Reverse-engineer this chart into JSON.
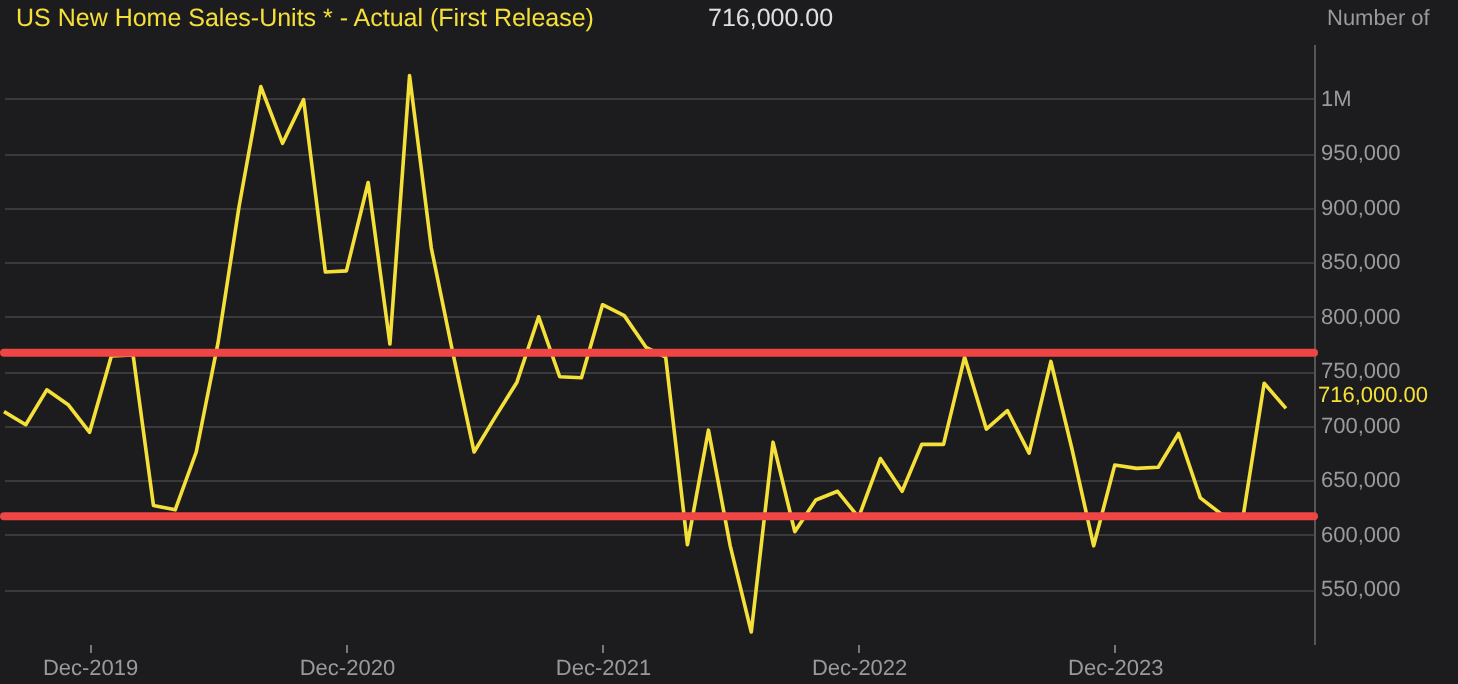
{
  "chart_data": {
    "type": "line",
    "title": "US New Home Sales-Units * - Actual (First Release)",
    "ylabel": "Number of",
    "x": [
      "2019-08",
      "2019-09",
      "2019-10",
      "2019-11",
      "2019-12",
      "2020-01",
      "2020-02",
      "2020-03",
      "2020-04",
      "2020-05",
      "2020-06",
      "2020-07",
      "2020-08",
      "2020-09",
      "2020-10",
      "2020-11",
      "2020-12",
      "2021-01",
      "2021-02",
      "2021-03",
      "2021-04",
      "2021-05",
      "2021-06",
      "2021-07",
      "2021-08",
      "2021-09",
      "2021-10",
      "2021-11",
      "2021-12",
      "2022-01",
      "2022-02",
      "2022-03",
      "2022-04",
      "2022-05",
      "2022-06",
      "2022-07",
      "2022-08",
      "2022-09",
      "2022-10",
      "2022-11",
      "2022-12",
      "2023-01",
      "2023-02",
      "2023-03",
      "2023-04",
      "2023-05",
      "2023-06",
      "2023-07",
      "2023-08",
      "2023-09",
      "2023-10",
      "2023-11",
      "2023-12",
      "2024-01",
      "2024-02",
      "2024-03",
      "2024-04",
      "2024-05",
      "2024-06",
      "2024-07",
      "2024-08"
    ],
    "series": [
      {
        "color": "#f5e03a",
        "values": [
          713000,
          701000,
          733000,
          719000,
          694000,
          764000,
          765000,
          627000,
          623000,
          676000,
          776000,
          901000,
          1011000,
          959000,
          999000,
          841000,
          842000,
          923000,
          775000,
          1021000,
          863000,
          769000,
          676000,
          708000,
          740000,
          800000,
          745000,
          744000,
          811000,
          801000,
          772000,
          763000,
          591000,
          696000,
          590000,
          511000,
          685000,
          603000,
          632000,
          640000,
          616000,
          670000,
          640000,
          683000,
          683000,
          763000,
          697000,
          714000,
          675000,
          759000,
          679000,
          590000,
          664000,
          661000,
          662000,
          693000,
          634000,
          619000,
          617000,
          739000,
          716000
        ]
      }
    ],
    "xlim": [
      "2019-08",
      "2024-09-10"
    ],
    "xticks": [
      {
        "value": "2019-12",
        "label": "Dec-2019"
      },
      {
        "value": "2020-12",
        "label": "Dec-2020"
      },
      {
        "value": "2021-12",
        "label": "Dec-2021"
      },
      {
        "value": "2022-12",
        "label": "Dec-2022"
      },
      {
        "value": "2023-12",
        "label": "Dec-2023"
      }
    ],
    "ylim": [
      500000,
      1050000
    ],
    "yticks": [
      {
        "value": 550000,
        "label": "550,000"
      },
      {
        "value": 600000,
        "label": "600,000"
      },
      {
        "value": 650000,
        "label": "650,000"
      },
      {
        "value": 700000,
        "label": "700,000"
      },
      {
        "value": 750000,
        "label": "750,000"
      },
      {
        "value": 800000,
        "label": "800,000"
      },
      {
        "value": 850000,
        "label": "850,000"
      },
      {
        "value": 900000,
        "label": "900,000"
      },
      {
        "value": 950000,
        "label": "950,000"
      },
      {
        "value": 1000000,
        "label": "1M"
      }
    ],
    "ref_lines": [
      {
        "axis": "y",
        "value": 767000,
        "color": "#f04545"
      },
      {
        "axis": "y",
        "value": 617000,
        "color": "#f04545"
      }
    ],
    "annotations": [
      "716,000.00",
      {
        "text": "716,000.00",
        "x": "2024-08",
        "y": 716000
      }
    ],
    "grid": "y",
    "marker": "none",
    "line_style": "solid"
  }
}
